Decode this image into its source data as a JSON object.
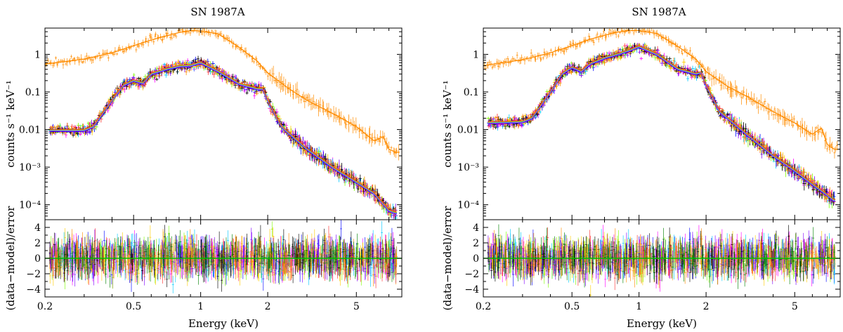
{
  "chart_data": [
    {
      "type": "line",
      "title": "SN 1987A",
      "xlabel": "Energy (keV)",
      "xscale": "log",
      "xlim": [
        0.2,
        8
      ],
      "x_ticks": [
        0.2,
        0.5,
        1,
        2,
        5
      ],
      "x_tick_labels": [
        "0.2",
        "0.5",
        "1",
        "2",
        "5"
      ],
      "top_panel": {
        "ylabel": "counts s⁻¹ keV⁻¹",
        "yscale": "log",
        "ylim": [
          4e-05,
          5
        ],
        "y_ticks": [
          0.0001,
          0.001,
          0.01,
          0.1,
          1
        ],
        "y_tick_labels": [
          "10⁻⁴",
          "10⁻³",
          "0.01",
          "0.1",
          "1"
        ],
        "series": [
          {
            "name": "orange spectrum",
            "color": "#ff8c00",
            "x": [
              0.2,
              0.3,
              0.4,
              0.5,
              0.6,
              0.7,
              0.8,
              0.9,
              1.0,
              1.2,
              1.5,
              1.8,
              2.0,
              2.5,
              3,
              4,
              5,
              6,
              6.6,
              7,
              7.5
            ],
            "y": [
              0.55,
              0.75,
              1.1,
              1.7,
              2.4,
              3.1,
              3.8,
              4.3,
              4.2,
              3.5,
              1.5,
              0.65,
              0.32,
              0.12,
              0.06,
              0.025,
              0.012,
              0.005,
              0.0065,
              0.003,
              0.0025
            ]
          },
          {
            "name": "instrument spectra",
            "color": "#3050c8",
            "x": [
              0.2,
              0.3,
              0.33,
              0.4,
              0.45,
              0.5,
              0.55,
              0.6,
              0.7,
              0.8,
              0.9,
              1.0,
              1.2,
              1.5,
              1.8,
              1.9,
              2.0,
              2.3,
              3,
              4,
              5,
              6,
              7,
              7.5
            ],
            "y": [
              0.0095,
              0.0095,
              0.012,
              0.06,
              0.15,
              0.2,
              0.17,
              0.3,
              0.4,
              0.48,
              0.5,
              0.6,
              0.35,
              0.16,
              0.12,
              0.12,
              0.06,
              0.012,
              0.003,
              0.0009,
              0.0004,
              0.0002,
              7e-05,
              6e-05
            ]
          }
        ]
      },
      "bottom_panel": {
        "ylabel": "(data−model)/error",
        "ylim": [
          -5,
          5
        ],
        "y_ticks": [
          -4,
          -2,
          0,
          2,
          4
        ],
        "y_tick_labels": [
          "−4",
          "−2",
          "0",
          "2",
          "4"
        ],
        "zero_line_color": "#00c000",
        "residual_spread": 1.8
      }
    },
    {
      "type": "line",
      "title": "SN 1987A",
      "xlabel": "Energy (keV)",
      "xscale": "log",
      "xlim": [
        0.2,
        8
      ],
      "x_ticks": [
        0.2,
        0.5,
        1,
        2,
        5
      ],
      "x_tick_labels": [
        "0.2",
        "0.5",
        "1",
        "2",
        "5"
      ],
      "top_panel": {
        "ylabel": "counts s⁻¹ keV⁻¹",
        "yscale": "log",
        "ylim": [
          4e-05,
          5
        ],
        "y_ticks": [
          0.0001,
          0.001,
          0.01,
          0.1,
          1
        ],
        "y_tick_labels": [
          "10⁻⁴",
          "10⁻³",
          "0.01",
          "0.1",
          "1"
        ],
        "series": [
          {
            "name": "orange spectrum",
            "color": "#ff8c00",
            "x": [
              0.2,
              0.3,
              0.4,
              0.5,
              0.6,
              0.7,
              0.8,
              0.9,
              1.0,
              1.2,
              1.5,
              1.8,
              2.0,
              2.5,
              3,
              4,
              5,
              6,
              6.6,
              7,
              7.5
            ],
            "y": [
              0.5,
              0.72,
              1.1,
              1.7,
              2.5,
              3.2,
              3.9,
              4.3,
              4.3,
              3.6,
              1.6,
              0.75,
              0.35,
              0.14,
              0.08,
              0.03,
              0.015,
              0.0075,
              0.011,
              0.004,
              0.003
            ]
          },
          {
            "name": "instrument spectra",
            "color": "#3050c8",
            "x": [
              0.2,
              0.3,
              0.33,
              0.4,
              0.45,
              0.5,
              0.55,
              0.6,
              0.7,
              0.8,
              0.9,
              1.0,
              1.2,
              1.5,
              1.8,
              1.9,
              2.0,
              2.3,
              3,
              4,
              5,
              6,
              7,
              7.5
            ],
            "y": [
              0.015,
              0.016,
              0.02,
              0.1,
              0.3,
              0.45,
              0.35,
              0.55,
              0.8,
              1.0,
              1.25,
              1.6,
              1.0,
              0.4,
              0.3,
              0.33,
              0.15,
              0.03,
              0.008,
              0.002,
              0.0008,
              0.00035,
              0.00018,
              0.00013
            ]
          }
        ]
      },
      "bottom_panel": {
        "ylabel": "(data−model)/error",
        "ylim": [
          -5,
          5
        ],
        "y_ticks": [
          -4,
          -2,
          0,
          2,
          4
        ],
        "y_tick_labels": [
          "−4",
          "−2",
          "0",
          "2",
          "4"
        ],
        "zero_line_color": "#00c000",
        "residual_spread": 1.8
      }
    }
  ],
  "palette": [
    "#0000ff",
    "#ff00ff",
    "#00c8ff",
    "#7fff00",
    "#ff3030",
    "#ffcc00",
    "#8000ff",
    "#000000",
    "#ff8c00",
    "#008000"
  ]
}
